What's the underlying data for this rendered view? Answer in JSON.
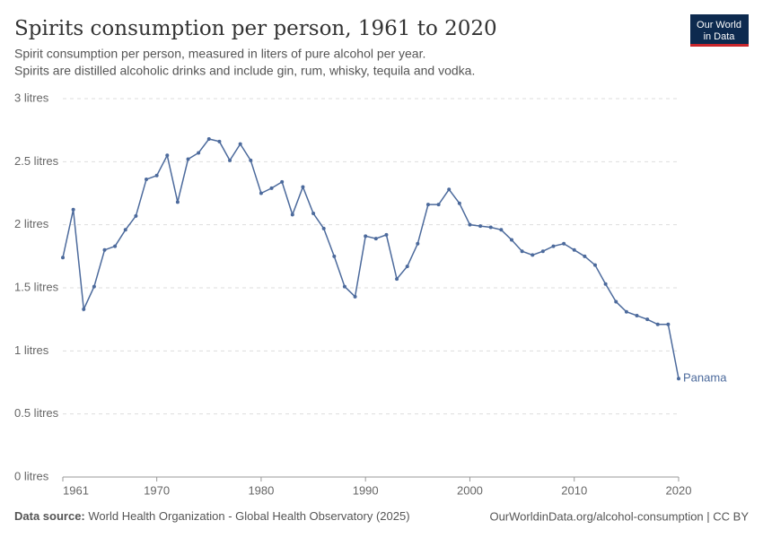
{
  "chart_data": {
    "type": "line",
    "title": "Spirits consumption per person, 1961 to 2020",
    "subtitle": [
      "Spirit consumption per person, measured in liters of pure alcohol per year.",
      "Spirits are distilled alcoholic drinks and include gin, rum, whisky, tequila and vodka."
    ],
    "logo": [
      "Our World",
      "in Data"
    ],
    "x": [
      1961,
      1962,
      1963,
      1964,
      1965,
      1966,
      1967,
      1968,
      1969,
      1970,
      1971,
      1972,
      1973,
      1974,
      1975,
      1976,
      1977,
      1978,
      1979,
      1980,
      1981,
      1982,
      1983,
      1984,
      1985,
      1986,
      1987,
      1988,
      1989,
      1990,
      1991,
      1992,
      1993,
      1994,
      1995,
      1996,
      1997,
      1998,
      1999,
      2000,
      2001,
      2002,
      2003,
      2004,
      2005,
      2006,
      2007,
      2008,
      2009,
      2010,
      2011,
      2012,
      2013,
      2014,
      2015,
      2016,
      2017,
      2018,
      2019,
      2020
    ],
    "series": [
      {
        "name": "Panama",
        "color": "#4c6a9c",
        "values": [
          1.74,
          2.12,
          1.33,
          1.51,
          1.8,
          1.83,
          1.96,
          2.07,
          2.36,
          2.39,
          2.55,
          2.18,
          2.52,
          2.57,
          2.68,
          2.66,
          2.51,
          2.64,
          2.51,
          2.25,
          2.29,
          2.34,
          2.08,
          2.3,
          2.09,
          1.97,
          1.75,
          1.51,
          1.43,
          1.91,
          1.89,
          1.92,
          1.57,
          1.67,
          1.85,
          2.16,
          2.16,
          2.28,
          2.17,
          2.0,
          1.99,
          1.98,
          1.96,
          1.88,
          1.79,
          1.76,
          1.79,
          1.83,
          1.85,
          1.8,
          1.75,
          1.68,
          1.53,
          1.39,
          1.31,
          1.28,
          1.25,
          1.21,
          1.21,
          0.78
        ]
      }
    ],
    "xlim": [
      1961,
      2020
    ],
    "xticks": [
      1961,
      1970,
      1980,
      1990,
      2000,
      2010,
      2020
    ],
    "ylim": [
      0,
      3
    ],
    "yticks": [
      {
        "value": 0,
        "label": "0 litres"
      },
      {
        "value": 0.5,
        "label": "0.5 litres"
      },
      {
        "value": 1,
        "label": "1 litres"
      },
      {
        "value": 1.5,
        "label": "1.5 litres"
      },
      {
        "value": 2,
        "label": "2 litres"
      },
      {
        "value": 2.5,
        "label": "2.5 litres"
      },
      {
        "value": 3,
        "label": "3 litres"
      }
    ],
    "grid": true,
    "source_label": "Data source:",
    "source": "World Health Organization - Global Health Observatory (2025)",
    "footer_right": "OurWorldinData.org/alcohol-consumption | CC BY"
  }
}
